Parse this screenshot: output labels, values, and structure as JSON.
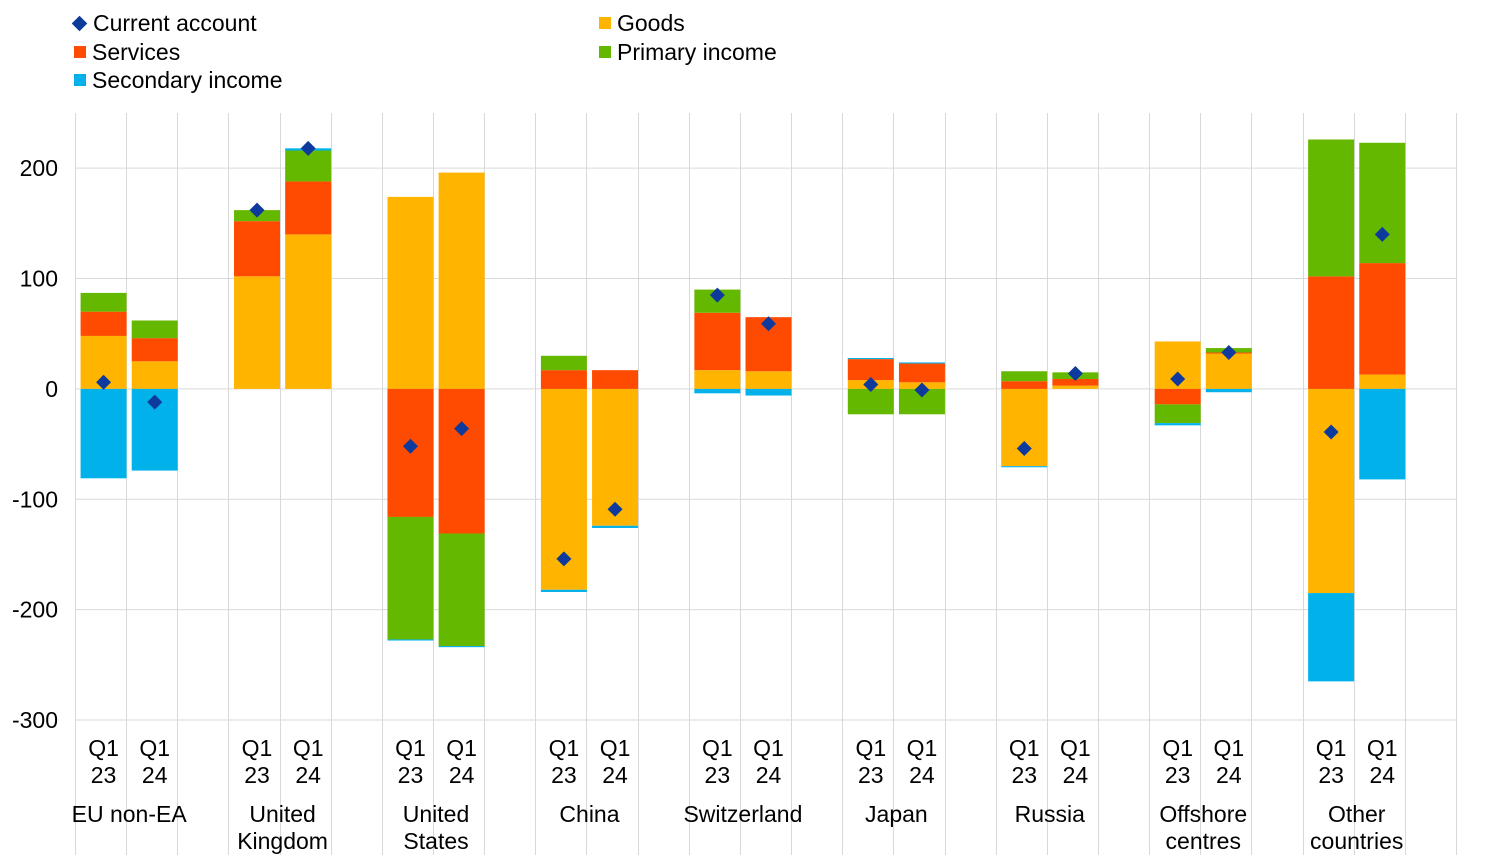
{
  "legend": [
    {
      "name": "Current account",
      "color": "#0d3a9c",
      "shape": "diamond"
    },
    {
      "name": "Goods",
      "color": "#ffb400",
      "shape": "square"
    },
    {
      "name": "Services",
      "color": "#ff4b00",
      "shape": "square"
    },
    {
      "name": "Primary income",
      "color": "#65b800",
      "shape": "square"
    },
    {
      "name": "Secondary income",
      "color": "#00b1ea",
      "shape": "square"
    }
  ],
  "chart_data": {
    "type": "bar",
    "stacked": true,
    "title": "",
    "xlabel": "",
    "ylabel": "",
    "ylim": [
      -300,
      250
    ],
    "yticks": [
      200,
      100,
      0,
      -100,
      -200,
      -300
    ],
    "grid": true,
    "legend_position": "top",
    "groups": [
      {
        "name": "EU non-EA",
        "periods": [
          {
            "label": "Q1\n23",
            "goods": 48,
            "services": 22,
            "primary_income": 17,
            "secondary_income": -81,
            "current_account": 6
          },
          {
            "label": "Q1\n24",
            "goods": 25,
            "services": 21,
            "primary_income": 16,
            "secondary_income": -74,
            "current_account": -12
          }
        ]
      },
      {
        "name": "United\nKingdom",
        "periods": [
          {
            "label": "Q1\n23",
            "goods": 102,
            "services": 50,
            "primary_income": 10,
            "secondary_income": 0,
            "current_account": 162
          },
          {
            "label": "Q1\n24",
            "goods": 140,
            "services": 48,
            "primary_income": 28,
            "secondary_income": 2,
            "current_account": 218
          }
        ]
      },
      {
        "name": "United\nStates",
        "periods": [
          {
            "label": "Q1\n23",
            "goods": 174,
            "services": -116,
            "primary_income": -111,
            "secondary_income": -1,
            "current_account": -52
          },
          {
            "label": "Q1\n24",
            "goods": 196,
            "services": -131,
            "primary_income": -102,
            "secondary_income": -1,
            "current_account": -36
          }
        ]
      },
      {
        "name": "China",
        "periods": [
          {
            "label": "Q1\n23",
            "goods": -182,
            "services": 17,
            "primary_income": 13,
            "secondary_income": -2,
            "current_account": -154
          },
          {
            "label": "Q1\n24",
            "goods": -124,
            "services": 17,
            "primary_income": 0,
            "secondary_income": -2,
            "current_account": -109
          }
        ]
      },
      {
        "name": "Switzerland",
        "periods": [
          {
            "label": "Q1\n23",
            "goods": 17,
            "services": 52,
            "primary_income": 21,
            "secondary_income": -4,
            "current_account": 85
          },
          {
            "label": "Q1\n24",
            "goods": 16,
            "services": 49,
            "primary_income": 0,
            "secondary_income": -6,
            "current_account": 59
          }
        ]
      },
      {
        "name": "Japan",
        "periods": [
          {
            "label": "Q1\n23",
            "goods": 8,
            "services": 19,
            "primary_income": -23,
            "secondary_income": 1,
            "current_account": 4
          },
          {
            "label": "Q1\n24",
            "goods": 6,
            "services": 17,
            "primary_income": -23,
            "secondary_income": 1,
            "current_account": -1
          }
        ]
      },
      {
        "name": "Russia",
        "periods": [
          {
            "label": "Q1\n23",
            "goods": -70,
            "services": 7,
            "primary_income": 9,
            "secondary_income": -1,
            "current_account": -54
          },
          {
            "label": "Q1\n24",
            "goods": 3,
            "services": 6,
            "primary_income": 6,
            "secondary_income": 0,
            "current_account": 14
          }
        ]
      },
      {
        "name": "Offshore\ncentres",
        "periods": [
          {
            "label": "Q1\n23",
            "goods": 43,
            "services": -14,
            "primary_income": -17,
            "secondary_income": -2,
            "current_account": 9
          },
          {
            "label": "Q1\n24",
            "goods": 32,
            "services": 1,
            "primary_income": 4,
            "secondary_income": -3,
            "current_account": 33
          }
        ]
      },
      {
        "name": "Other\ncountries",
        "periods": [
          {
            "label": "Q1\n23",
            "goods": -185,
            "services": 102,
            "primary_income": 124,
            "secondary_income": -80,
            "current_account": -39
          },
          {
            "label": "Q1\n24",
            "goods": 13,
            "services": 101,
            "primary_income": 109,
            "secondary_income": -82,
            "current_account": 140
          }
        ]
      }
    ]
  }
}
